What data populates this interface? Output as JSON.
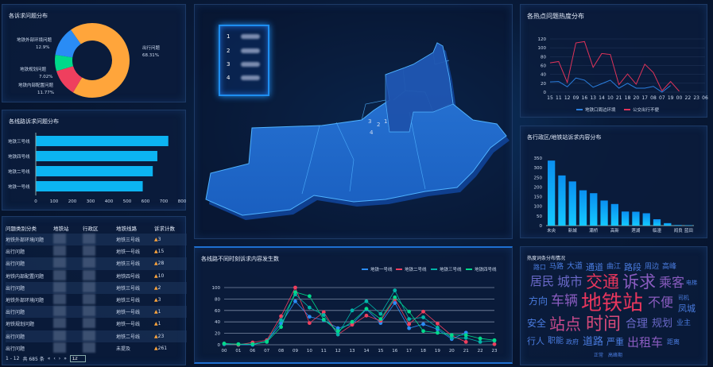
{
  "pie": {
    "title": "各诉求问题分布",
    "slices": [
      {
        "label": "出行问题",
        "pct": "68.31%",
        "value": 68.31,
        "color": "#ffa53b"
      },
      {
        "label": "地铁内部配置问题",
        "pct": "11.77%",
        "value": 11.77,
        "color": "#ef3f5e"
      },
      {
        "label": "地铁规划问题",
        "pct": "7.02%",
        "value": 7.02,
        "color": "#00d98a"
      },
      {
        "label": "地铁外部环境问题",
        "pct": "12.9%",
        "value": 12.9,
        "color": "#2a8cf5"
      }
    ]
  },
  "hbar": {
    "title": "各线路诉求问题分布",
    "categories": [
      "地铁三号线",
      "地铁四号线",
      "地铁二号线",
      "地铁一号线"
    ],
    "values": [
      725,
      665,
      640,
      585
    ],
    "xlim": [
      0,
      800
    ],
    "ticks": [
      "0",
      "100",
      "200",
      "300",
      "400",
      "500",
      "600",
      "700",
      "800"
    ]
  },
  "table": {
    "headers": [
      "问题类别分类",
      "地铁站",
      "行政区",
      "地铁线路",
      "诉求计数"
    ],
    "rows": [
      [
        "地铁外部环境问题",
        "地铁三号线",
        "3"
      ],
      [
        "出行问题",
        "地铁一号线",
        "15"
      ],
      [
        "出行问题",
        "地铁三号线",
        "28"
      ],
      [
        "地铁内部配置问题",
        "地铁四号线",
        "10"
      ],
      [
        "出行问题",
        "地铁三号线",
        "2"
      ],
      [
        "地铁外部环境问题",
        "地铁三号线",
        "3"
      ],
      [
        "出行问题",
        "地铁一号线",
        "1"
      ],
      [
        "地铁规划问题",
        "地铁一号线",
        "1"
      ],
      [
        "出行问题",
        "地铁二号线",
        "23"
      ],
      [
        "出行问题",
        "未提及",
        "261"
      ]
    ],
    "pager": {
      "range": "1 - 12",
      "total": "共 685 条",
      "first": "«",
      "prev": "‹",
      "next": "›",
      "last": "»",
      "page": "12"
    }
  },
  "map": {
    "legend": [
      "1",
      "2",
      "3",
      "4"
    ],
    "inner_labels": [
      "3",
      "2",
      "1",
      "4"
    ]
  },
  "hotspot": {
    "title": "各热点问题热度分布",
    "categories": [
      "15",
      "11",
      "12",
      "09",
      "16",
      "13",
      "14",
      "10",
      "21",
      "18",
      "20",
      "17",
      "08",
      "07",
      "19",
      "00",
      "22",
      "23",
      "06"
    ],
    "ylim": [
      0,
      120
    ],
    "yticks": [
      "0",
      "20",
      "40",
      "60",
      "80",
      "100",
      "120"
    ],
    "series": [
      {
        "name": "地铁口周边环境",
        "color": "#2a7fe0",
        "values": [
          23,
          24,
          12,
          32,
          27,
          11,
          19,
          27,
          9,
          20,
          9,
          9,
          13,
          0,
          15,
          null,
          null,
          null,
          null
        ]
      },
      {
        "name": "公交出行不便",
        "color": "#e0335a",
        "values": [
          66,
          69,
          22,
          111,
          114,
          56,
          87,
          85,
          17,
          41,
          18,
          63,
          44,
          3,
          24,
          2,
          null,
          null,
          null
        ]
      }
    ]
  },
  "district": {
    "title": "各行政区/地铁站诉求内容分布",
    "labels": [
      "未央",
      "",
      "新城",
      "",
      "灞桥",
      "",
      "高新",
      "",
      "莲湖",
      "",
      "临潼",
      "",
      "阎良",
      "蓝田"
    ],
    "values": [
      337,
      260,
      229,
      183,
      168,
      130,
      112,
      73,
      72,
      64,
      33,
      13,
      3,
      2
    ],
    "ylim": [
      0,
      350
    ],
    "yticks": [
      "0",
      "50",
      "100",
      "150",
      "200",
      "250",
      "300",
      "350"
    ]
  },
  "lines": {
    "title": "各线路不同时刻诉求内容发生数",
    "categories": [
      "00",
      "01",
      "06",
      "07",
      "08",
      "09",
      "10",
      "11",
      "12",
      "13",
      "14",
      "15",
      "16",
      "17",
      "18",
      "19",
      "20",
      "21",
      "22",
      "23"
    ],
    "ylim": [
      0,
      100
    ],
    "yticks": [
      "0",
      "20",
      "40",
      "60",
      "80",
      "100"
    ],
    "series": [
      {
        "name": "地铁一号线",
        "color": "#2a8cf5",
        "values": [
          1,
          0,
          0,
          6,
          37,
          76,
          49,
          43,
          29,
          36,
          62,
          38,
          73,
          29,
          36,
          27,
          10,
          21,
          null,
          null
        ]
      },
      {
        "name": "地铁二号线",
        "color": "#ef3f5e",
        "values": [
          2,
          0,
          4,
          8,
          50,
          100,
          38,
          57,
          18,
          35,
          51,
          42,
          80,
          36,
          58,
          37,
          16,
          5,
          null,
          1
        ]
      },
      {
        "name": "地铁三号线",
        "color": "#00b4a8",
        "values": [
          2,
          1,
          1,
          6,
          43,
          88,
          65,
          52,
          18,
          60,
          76,
          54,
          95,
          45,
          48,
          30,
          12,
          12,
          5,
          7
        ]
      },
      {
        "name": "地铁四号线",
        "color": "#00d98a",
        "values": [
          2,
          1,
          1,
          5,
          31,
          92,
          85,
          44,
          24,
          40,
          63,
          45,
          83,
          58,
          24,
          21,
          17,
          17,
          11,
          8
        ]
      }
    ]
  },
  "cloud": {
    "title": "热度词条分布情况",
    "words": [
      "地铁站",
      "交通",
      "诉求",
      "时间",
      "站点",
      "车辆",
      "城市",
      "居民",
      "乘客",
      "不便",
      "合理",
      "出租车",
      "道路",
      "严重",
      "规划",
      "安全",
      "方向",
      "职能",
      "行人",
      "凤城",
      "通道",
      "路段",
      "大道",
      "马路",
      "曲江",
      "周边",
      "路口",
      "高峰",
      "政府",
      "距离",
      "业主",
      "司机",
      "电梯",
      "正常",
      "高峰期"
    ]
  }
}
